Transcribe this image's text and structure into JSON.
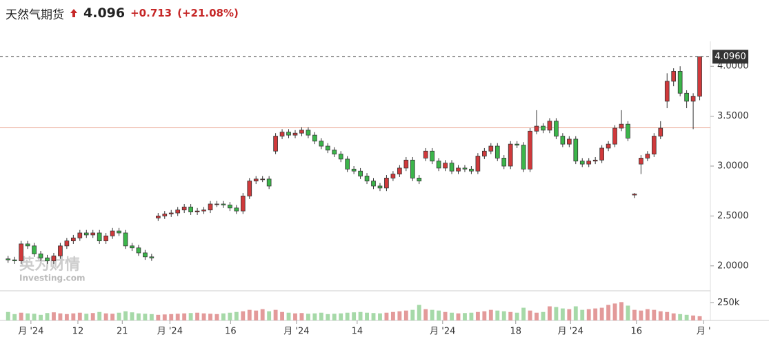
{
  "header": {
    "title": "天然气期货",
    "price": "4.096",
    "change": "+0.713",
    "change_pct": "(+21.08%)"
  },
  "chart_data": {
    "type": "candlestick",
    "up_color": "#d0393b",
    "down_color": "#3bb54a",
    "up_volume_color": "#e39a9a",
    "down_volume_color": "#a6d9a8",
    "open": [
      2.07,
      2.06,
      2.05,
      2.22,
      2.2,
      2.12,
      2.08,
      2.05,
      2.1,
      2.2,
      2.25,
      2.28,
      2.33,
      2.31,
      2.33,
      2.25,
      2.3,
      2.35,
      2.33,
      2.2,
      2.18,
      2.13,
      2.09,
      2.48,
      2.5,
      2.52,
      2.53,
      2.56,
      2.59,
      2.54,
      2.55,
      2.56,
      2.62,
      2.62,
      2.61,
      2.58,
      2.55,
      2.7,
      2.85,
      2.87,
      2.87,
      3.15,
      3.3,
      3.34,
      3.31,
      3.33,
      3.36,
      3.31,
      3.25,
      3.2,
      3.16,
      3.12,
      3.07,
      2.97,
      2.95,
      2.9,
      2.85,
      2.8,
      2.78,
      2.88,
      2.92,
      2.98,
      3.06,
      2.88,
      3.08,
      3.15,
      3.05,
      2.98,
      3.03,
      2.95,
      2.98,
      2.97,
      2.95,
      3.1,
      3.15,
      3.2,
      3.08,
      3.0,
      3.22,
      3.21,
      2.97,
      3.35,
      3.4,
      3.36,
      3.45,
      3.3,
      3.22,
      3.27,
      3.05,
      3.02,
      3.05,
      3.06,
      3.18,
      3.22,
      3.38,
      3.42,
      2.71,
      3.02,
      3.08,
      3.12,
      3.3,
      3.65,
      3.85,
      3.95,
      3.73,
      3.65,
      3.7
    ],
    "high": [
      2.1,
      2.09,
      2.25,
      2.25,
      2.23,
      2.15,
      2.11,
      2.13,
      2.23,
      2.28,
      2.31,
      2.36,
      2.36,
      2.36,
      2.36,
      2.33,
      2.38,
      2.38,
      2.36,
      2.23,
      2.21,
      2.16,
      2.12,
      2.53,
      2.55,
      2.56,
      2.59,
      2.62,
      2.62,
      2.58,
      2.59,
      2.65,
      2.65,
      2.65,
      2.64,
      2.61,
      2.73,
      2.88,
      2.9,
      2.9,
      2.9,
      3.33,
      3.37,
      3.37,
      3.36,
      3.39,
      3.39,
      3.34,
      3.28,
      3.23,
      3.19,
      3.15,
      3.1,
      3.0,
      2.98,
      2.93,
      2.88,
      2.83,
      2.91,
      2.95,
      3.01,
      3.09,
      3.09,
      2.91,
      3.18,
      3.18,
      3.08,
      3.06,
      3.06,
      3.01,
      3.01,
      3.0,
      3.13,
      3.18,
      3.23,
      3.23,
      3.11,
      3.25,
      3.25,
      3.24,
      3.38,
      3.56,
      3.43,
      3.48,
      3.48,
      3.33,
      3.3,
      3.3,
      3.08,
      3.08,
      3.09,
      3.21,
      3.25,
      3.41,
      3.56,
      3.45,
      2.73,
      3.11,
      3.15,
      3.33,
      3.45,
      3.93,
      3.98,
      4.0,
      3.76,
      3.73,
      4.096
    ],
    "low": [
      2.03,
      2.02,
      2.02,
      2.17,
      2.09,
      2.05,
      2.02,
      2.02,
      2.07,
      2.17,
      2.22,
      2.25,
      2.28,
      2.28,
      2.22,
      2.22,
      2.27,
      2.3,
      2.17,
      2.15,
      2.1,
      2.06,
      2.05,
      2.45,
      2.47,
      2.49,
      2.5,
      2.53,
      2.51,
      2.51,
      2.52,
      2.53,
      2.59,
      2.58,
      2.55,
      2.52,
      2.52,
      2.67,
      2.82,
      2.84,
      2.77,
      3.12,
      3.27,
      3.28,
      3.28,
      3.3,
      3.28,
      3.22,
      3.17,
      3.13,
      3.09,
      3.04,
      2.94,
      2.92,
      2.87,
      2.82,
      2.77,
      2.75,
      2.75,
      2.85,
      2.89,
      2.95,
      2.85,
      2.82,
      3.05,
      3.02,
      2.95,
      2.95,
      2.92,
      2.92,
      2.94,
      2.92,
      2.92,
      3.07,
      3.12,
      3.05,
      2.97,
      2.97,
      3.18,
      2.94,
      2.94,
      3.32,
      3.33,
      3.33,
      3.27,
      3.19,
      3.19,
      3.02,
      2.99,
      2.99,
      3.02,
      3.03,
      3.15,
      3.19,
      3.35,
      3.25,
      2.68,
      2.92,
      3.05,
      3.09,
      3.27,
      3.58,
      3.8,
      3.7,
      3.58,
      3.37,
      3.66
    ],
    "close": [
      2.06,
      2.05,
      2.22,
      2.2,
      2.12,
      2.08,
      2.05,
      2.1,
      2.2,
      2.25,
      2.28,
      2.33,
      2.31,
      2.33,
      2.25,
      2.3,
      2.35,
      2.33,
      2.2,
      2.18,
      2.13,
      2.09,
      2.08,
      2.5,
      2.52,
      2.53,
      2.56,
      2.59,
      2.54,
      2.55,
      2.56,
      2.62,
      2.62,
      2.61,
      2.58,
      2.55,
      2.7,
      2.85,
      2.87,
      2.87,
      2.8,
      3.3,
      3.34,
      3.31,
      3.33,
      3.36,
      3.31,
      3.25,
      3.2,
      3.16,
      3.12,
      3.07,
      2.97,
      2.95,
      2.9,
      2.85,
      2.8,
      2.78,
      2.88,
      2.92,
      2.98,
      3.06,
      2.88,
      2.85,
      3.15,
      3.05,
      2.98,
      3.03,
      2.95,
      2.98,
      2.97,
      2.95,
      3.1,
      3.15,
      3.2,
      3.08,
      3.0,
      3.22,
      3.21,
      2.97,
      3.35,
      3.4,
      3.36,
      3.45,
      3.3,
      3.22,
      3.27,
      3.05,
      3.02,
      3.05,
      3.06,
      3.18,
      3.22,
      3.38,
      3.42,
      3.28,
      2.72,
      3.08,
      3.12,
      3.3,
      3.38,
      3.85,
      3.95,
      3.73,
      3.65,
      3.7,
      4.096
    ],
    "volume": [
      120000,
      90000,
      110000,
      100000,
      95000,
      80000,
      105000,
      115000,
      100000,
      90000,
      100000,
      110000,
      95000,
      105000,
      120000,
      100000,
      95000,
      110000,
      130000,
      115000,
      100000,
      95000,
      90000,
      80000,
      85000,
      90000,
      95000,
      100000,
      105000,
      110000,
      100000,
      95000,
      90000,
      100000,
      110000,
      120000,
      130000,
      150000,
      140000,
      160000,
      130000,
      150000,
      120000,
      110000,
      100000,
      105000,
      95000,
      100000,
      110000,
      90000,
      95000,
      100000,
      110000,
      115000,
      120000,
      110000,
      105000,
      100000,
      110000,
      120000,
      130000,
      140000,
      150000,
      220000,
      160000,
      150000,
      140000,
      120000,
      110000,
      100000,
      105000,
      110000,
      120000,
      130000,
      150000,
      140000,
      130000,
      120000,
      110000,
      180000,
      140000,
      110000,
      120000,
      200000,
      190000,
      170000,
      160000,
      200000,
      150000,
      160000,
      170000,
      180000,
      220000,
      240000,
      260000,
      210000,
      150000,
      140000,
      160000,
      150000,
      130000,
      120000,
      100000,
      90000,
      80000,
      70000,
      60000
    ],
    "xlim": [
      -0.5,
      107
    ],
    "xticks": [
      {
        "value": 3.5,
        "label": "月 '24"
      },
      {
        "value": 10.7,
        "label": "12"
      },
      {
        "value": 17.5,
        "label": "21"
      },
      {
        "value": 24.8,
        "label": "月 '24"
      },
      {
        "value": 34.1,
        "label": "16"
      },
      {
        "value": 44.2,
        "label": "月 '24"
      },
      {
        "value": 53.5,
        "label": "14"
      },
      {
        "value": 66.6,
        "label": "月 '24"
      },
      {
        "value": 77.8,
        "label": "18"
      },
      {
        "value": 86.2,
        "label": "月 '24"
      },
      {
        "value": 96.3,
        "label": "16"
      },
      {
        "value": 106.6,
        "label": "月 '"
      }
    ],
    "ylim": [
      1.75,
      4.25
    ],
    "yticks": [
      {
        "value": 2,
        "label": "2.0000"
      },
      {
        "value": 2.5,
        "label": "2.5000"
      },
      {
        "value": 3,
        "label": "3.0000"
      },
      {
        "value": 3.5,
        "label": "3.5000"
      },
      {
        "value": 4,
        "label": "4.0000"
      }
    ],
    "volume_ylim": [
      0,
      420000
    ],
    "volume_yticks": [
      {
        "value": 250000,
        "label": "250k"
      }
    ],
    "reference_line": 3.383,
    "last_price": {
      "value": 4.096,
      "label": "4.0960"
    },
    "watermark": {
      "brand": "英为财情",
      "site": "Investing.com"
    }
  }
}
